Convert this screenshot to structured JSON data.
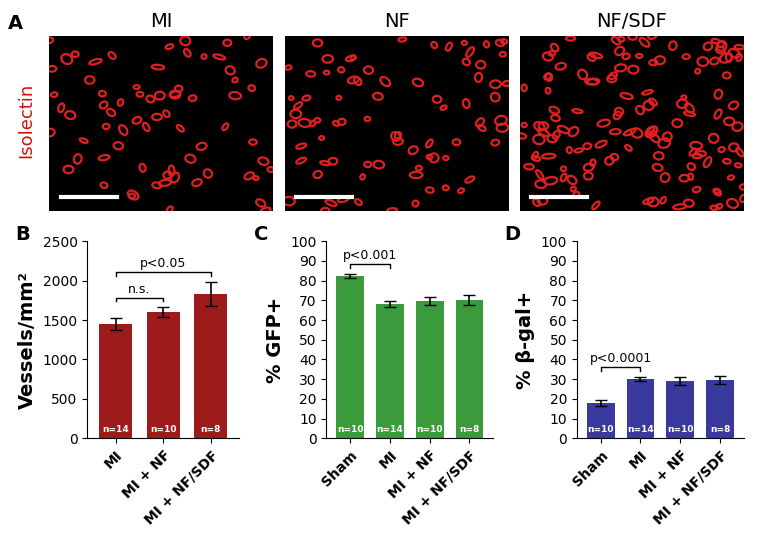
{
  "images": {
    "panel": "A",
    "stain": "Isolectin",
    "titles": [
      "MI",
      "NF",
      "NF/SDF"
    ]
  },
  "chart_data": [
    {
      "type": "bar",
      "panel": "B",
      "y_label": "Vessels/mm²",
      "categories": [
        "MI",
        "MI + NF",
        "MI + NF/SDF"
      ],
      "values": [
        1450,
        1600,
        1830
      ],
      "errors": [
        70,
        60,
        150
      ],
      "n_labels": [
        "n=14",
        "n=10",
        "n=8"
      ],
      "color": "#9e1b1b",
      "ylim": [
        0,
        2500
      ],
      "yticks": [
        0,
        500,
        1000,
        1500,
        2000,
        2500
      ],
      "brackets": [
        {
          "from": 0,
          "to": 1,
          "text": "n.s."
        },
        {
          "from": 0,
          "to": 2,
          "text": "p<0.05"
        }
      ]
    },
    {
      "type": "bar",
      "panel": "C",
      "y_label": "% GFP+",
      "categories": [
        "Sham",
        "MI",
        "MI + NF",
        "MI + NF/SDF"
      ],
      "values": [
        82.5,
        68,
        69.5,
        70
      ],
      "errors": [
        1,
        1.5,
        2,
        2.5
      ],
      "n_labels": [
        "n=10",
        "n=14",
        "n=10",
        "n=8"
      ],
      "color": "#3b9a3b",
      "ylim": [
        0,
        100
      ],
      "yticks": [
        0,
        10,
        20,
        30,
        40,
        50,
        60,
        70,
        80,
        90,
        100
      ],
      "brackets": [
        {
          "from": 0,
          "to": 1,
          "text": "p<0.001"
        }
      ]
    },
    {
      "type": "bar",
      "panel": "D",
      "y_label": "% β-gal+",
      "categories": [
        "Sham",
        "MI",
        "MI + NF",
        "MI + NF/SDF"
      ],
      "values": [
        18,
        30,
        29,
        29.5
      ],
      "errors": [
        1.5,
        1,
        2,
        2
      ],
      "n_labels": [
        "n=10",
        "n=14",
        "n=10",
        "n=8"
      ],
      "color": "#3a3a9e",
      "ylim": [
        0,
        100
      ],
      "yticks": [
        0,
        10,
        20,
        30,
        40,
        50,
        60,
        70,
        80,
        90,
        100
      ],
      "brackets": [
        {
          "from": 0,
          "to": 1,
          "text": "p<0.0001"
        }
      ]
    }
  ]
}
